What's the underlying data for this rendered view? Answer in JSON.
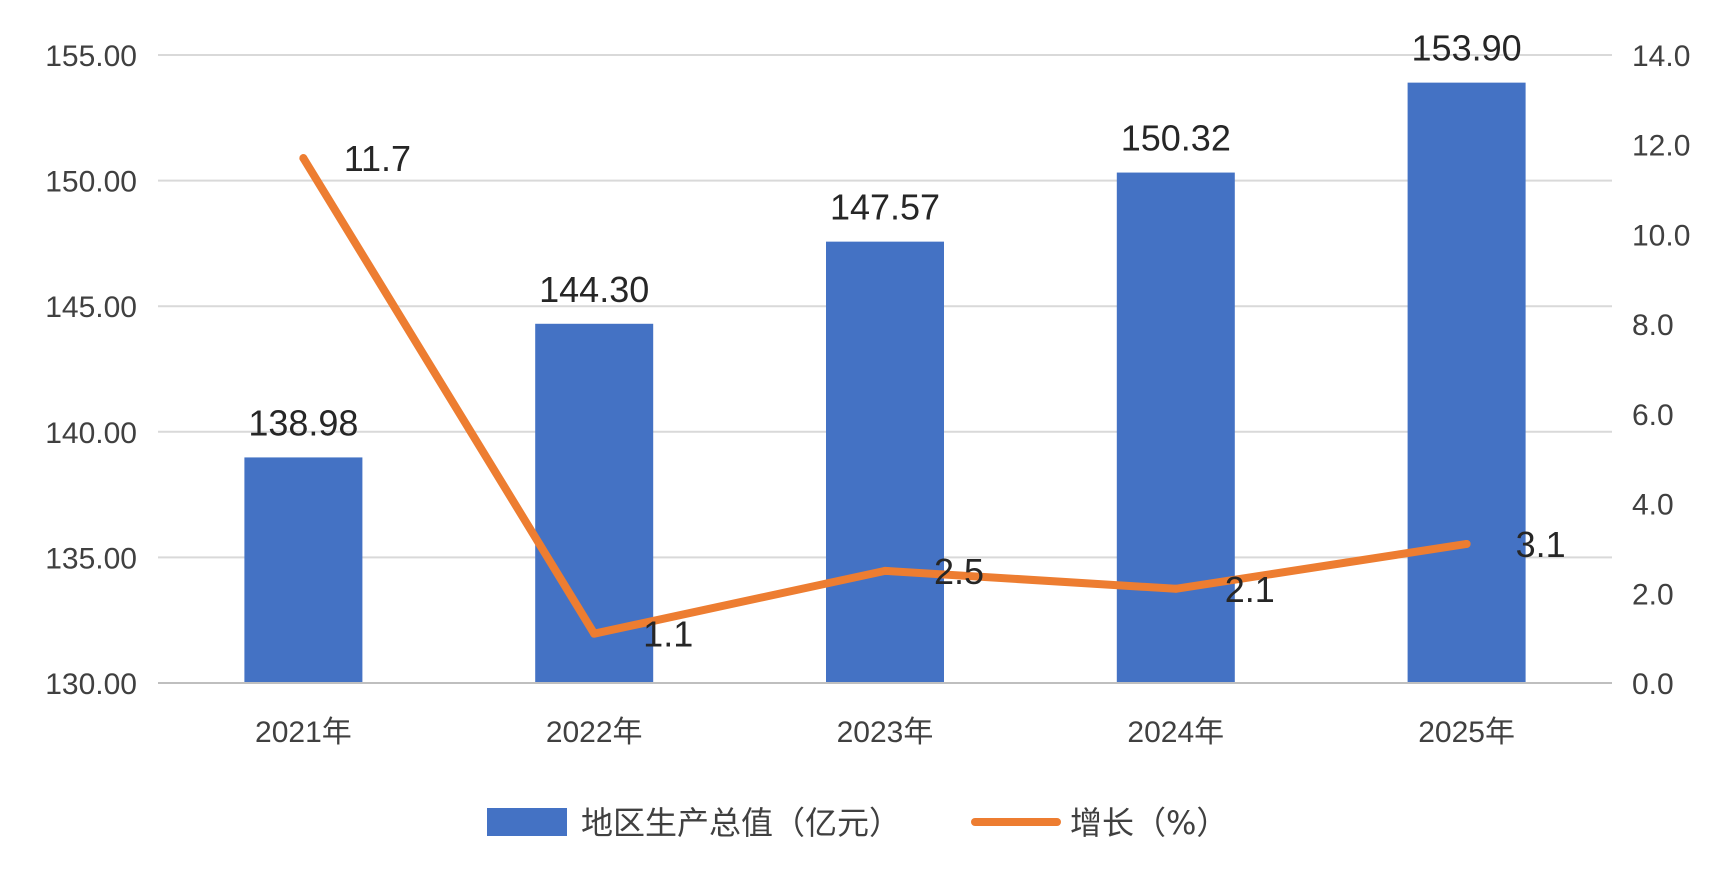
{
  "chart_data": {
    "type": "bar",
    "categories": [
      "2021年",
      "2022年",
      "2023年",
      "2024年",
      "2025年"
    ],
    "series": [
      {
        "name": "地区生产总值（亿元）",
        "type": "bar",
        "axis": "left",
        "color": "#4472C4",
        "values": [
          138.98,
          144.3,
          147.57,
          150.32,
          153.9
        ],
        "labels": [
          "138.98",
          "144.30",
          "147.57",
          "150.32",
          "153.90"
        ]
      },
      {
        "name": "增长（%）",
        "type": "line",
        "axis": "right",
        "color": "#ED7D31",
        "values": [
          11.7,
          1.1,
          2.5,
          2.1,
          3.1
        ],
        "labels": [
          "11.7",
          "1.1",
          "2.5",
          "2.1",
          "3.1"
        ]
      }
    ],
    "y_left": {
      "min": 130,
      "max": 155,
      "ticks": [
        "130.00",
        "135.00",
        "140.00",
        "145.00",
        "150.00",
        "155.00"
      ]
    },
    "y_right": {
      "min": 0,
      "max": 14,
      "ticks": [
        "0.0",
        "2.0",
        "4.0",
        "6.0",
        "8.0",
        "10.0",
        "12.0",
        "14.0"
      ]
    },
    "grid": true,
    "legend_position": "bottom",
    "title": "",
    "xlabel": "",
    "ylabel": ""
  }
}
